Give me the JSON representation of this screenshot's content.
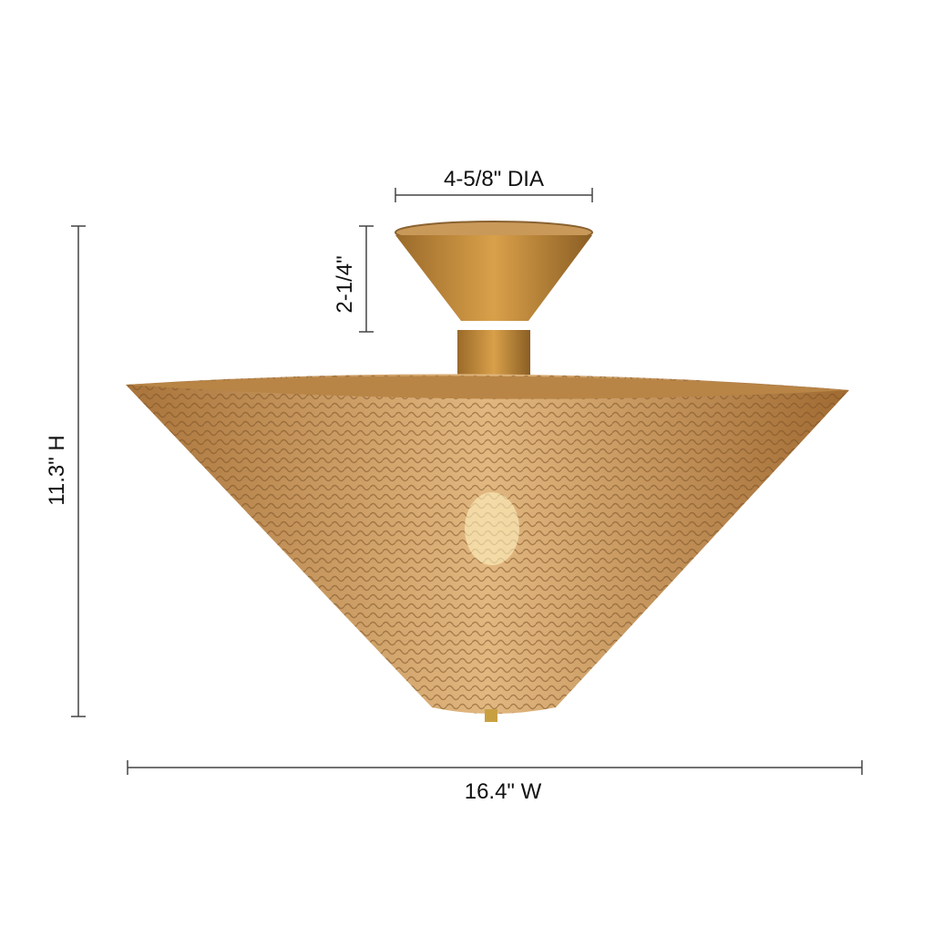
{
  "dimensions": {
    "canopy_diameter": "4-5/8\" DIA",
    "canopy_height": "2-1/4\"",
    "height": "11.3\" H",
    "width": "16.4\" W"
  }
}
